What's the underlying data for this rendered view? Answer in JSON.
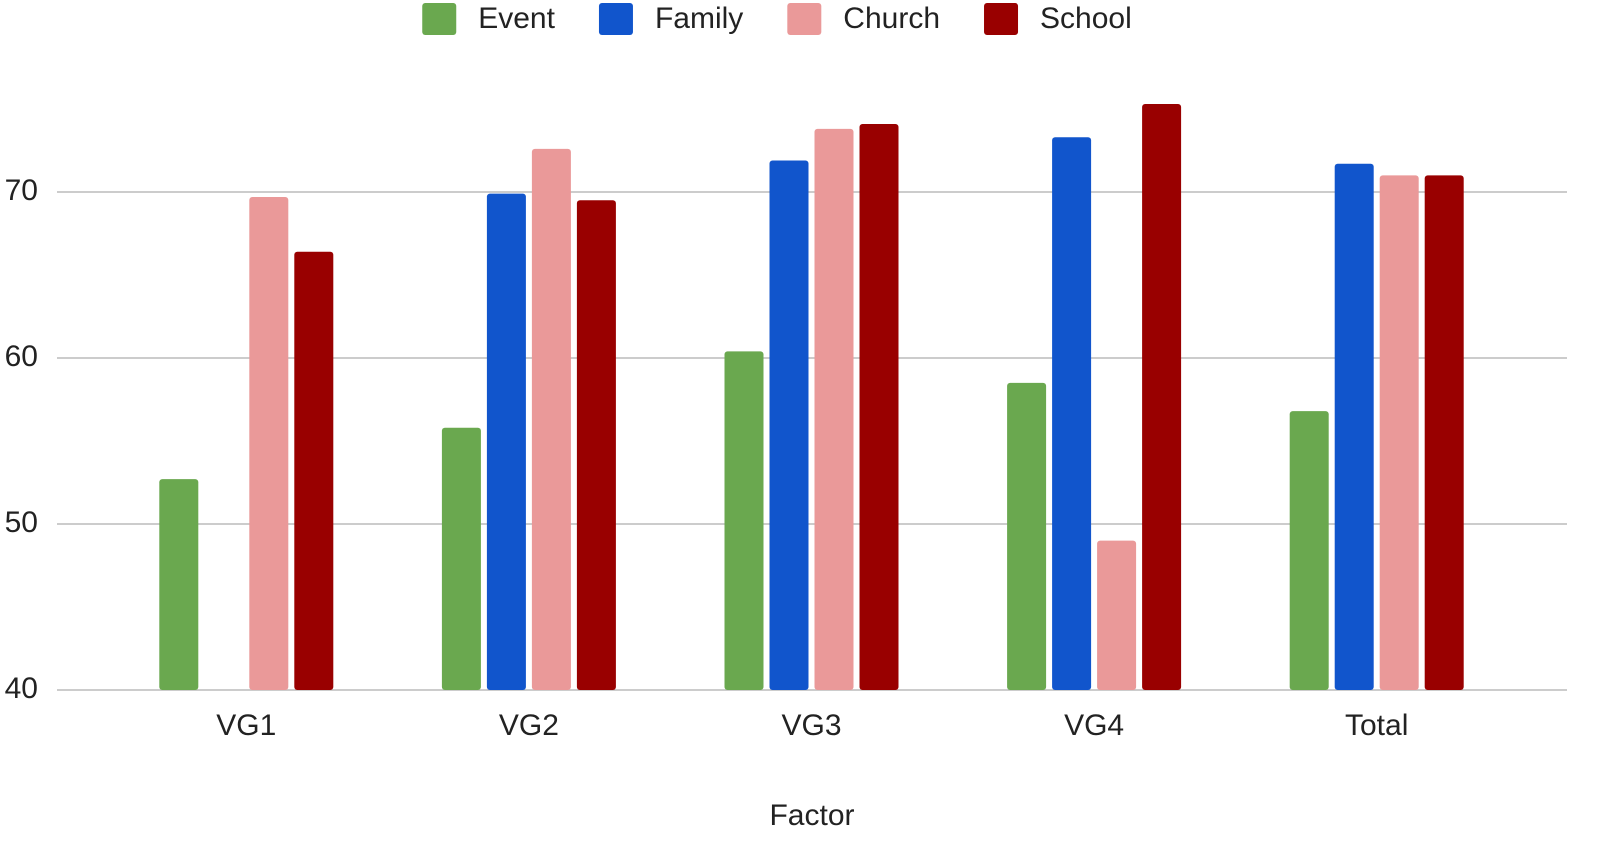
{
  "chart_data": {
    "type": "bar",
    "x_label": "Factor",
    "categories": [
      "VG1",
      "VG2",
      "VG3",
      "VG4",
      "Total"
    ],
    "series": [
      {
        "name": "Event",
        "color": "#6aa84f",
        "values": [
          52.7,
          55.8,
          60.4,
          58.5,
          56.8
        ]
      },
      {
        "name": "Family",
        "color": "#1155cc",
        "values": [
          null,
          69.9,
          71.9,
          73.3,
          71.7
        ]
      },
      {
        "name": "Church",
        "color": "#ea9999",
        "values": [
          69.7,
          72.6,
          73.8,
          49.0,
          71.0
        ]
      },
      {
        "name": "School",
        "color": "#990000",
        "values": [
          66.4,
          69.5,
          74.1,
          75.3,
          71.0
        ]
      }
    ],
    "ylim": [
      40,
      77
    ],
    "yticks": [
      40,
      50,
      60,
      70
    ],
    "grid": true,
    "legend": "top"
  }
}
